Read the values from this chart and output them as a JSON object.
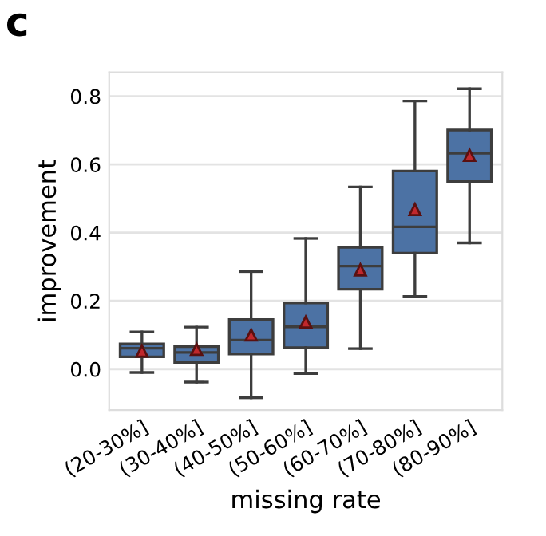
{
  "chart_data": {
    "type": "box",
    "title": "c",
    "xlabel": "missing rate",
    "ylabel": "improvement",
    "categories": [
      "(20-30%]",
      "(30-40%]",
      "(40-50%]",
      "(50-60%]",
      "(60-70%]",
      "(70-80%]",
      "(80-90%]"
    ],
    "series": [
      {
        "color": "#4c72a4",
        "boxes": [
          {
            "low": -0.01,
            "q1": 0.036,
            "median": 0.061,
            "q3": 0.074,
            "high": 0.109,
            "mean": 0.053
          },
          {
            "low": -0.038,
            "q1": 0.02,
            "median": 0.049,
            "q3": 0.066,
            "high": 0.123,
            "mean": 0.058
          },
          {
            "low": -0.084,
            "q1": 0.044,
            "median": 0.085,
            "q3": 0.145,
            "high": 0.286,
            "mean": 0.1
          },
          {
            "low": -0.013,
            "q1": 0.063,
            "median": 0.124,
            "q3": 0.194,
            "high": 0.383,
            "mean": 0.138
          },
          {
            "low": 0.06,
            "q1": 0.234,
            "median": 0.302,
            "q3": 0.357,
            "high": 0.534,
            "mean": 0.291
          },
          {
            "low": 0.213,
            "q1": 0.34,
            "median": 0.417,
            "q3": 0.581,
            "high": 0.786,
            "mean": 0.468
          },
          {
            "low": 0.37,
            "q1": 0.55,
            "median": 0.633,
            "q3": 0.701,
            "high": 0.822,
            "mean": 0.627
          }
        ]
      }
    ],
    "ylim": [
      -0.12,
      0.87
    ],
    "yticks": [
      {
        "value": 0,
        "label": "0.0"
      },
      0.2,
      0.4,
      0.6,
      0.8
    ],
    "grid": "y",
    "marker": "triangle"
  }
}
